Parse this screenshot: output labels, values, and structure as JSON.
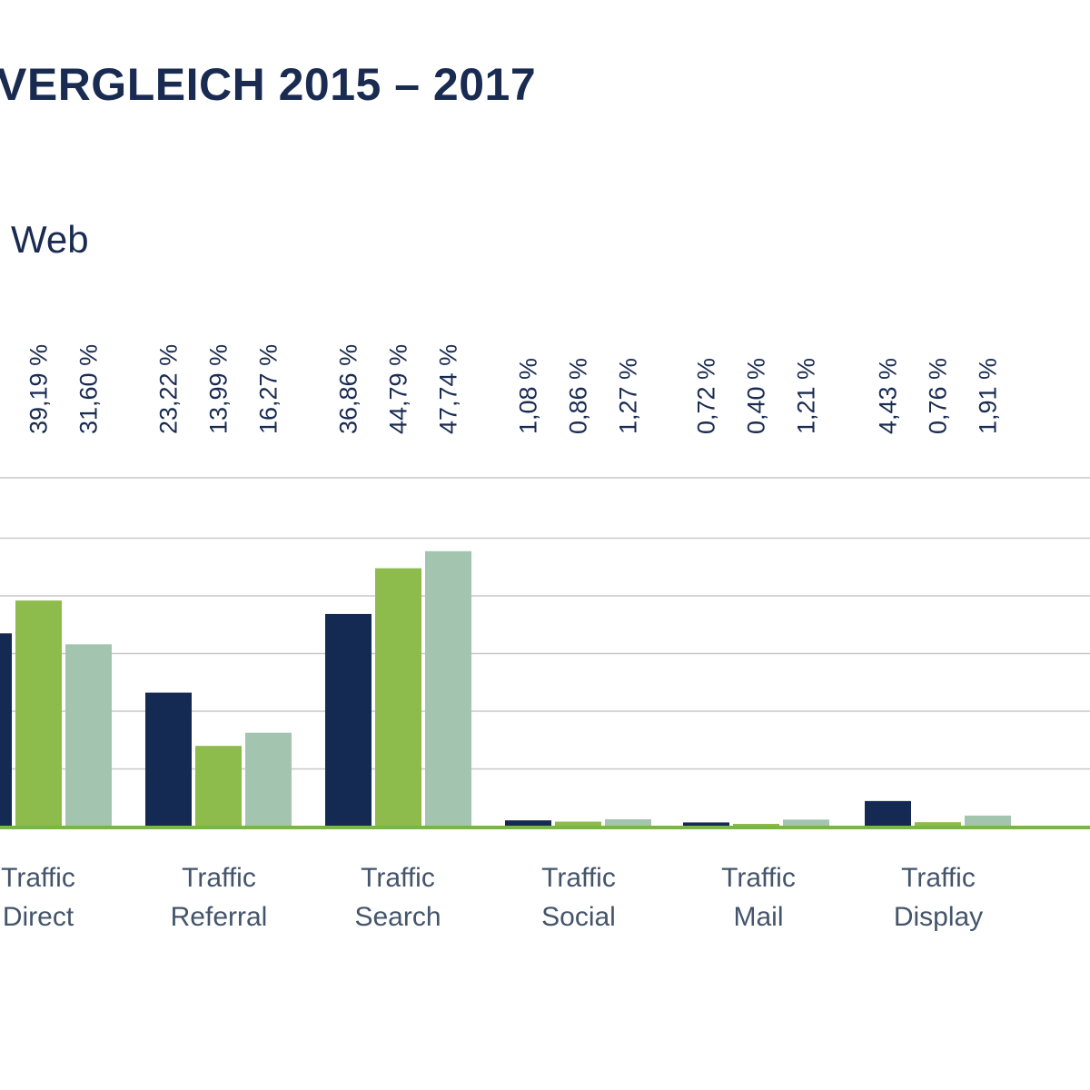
{
  "header": {
    "title": "VERGLEICH 2015 – 2017",
    "subtitle": "Web"
  },
  "colors": {
    "series": [
      "#142a52",
      "#8dbb4c",
      "#a3c4af"
    ],
    "grid": "#c9c9c9",
    "baseline": "#7ab547"
  },
  "chart_data": {
    "type": "bar",
    "categories": [
      [
        "Traffic",
        "Direct"
      ],
      [
        "Traffic",
        "Referral"
      ],
      [
        "Traffic",
        "Search"
      ],
      [
        "Traffic",
        "Social"
      ],
      [
        "Traffic",
        "Mail"
      ],
      [
        "Traffic",
        "Display"
      ]
    ],
    "series": [
      {
        "values": [
          33.5,
          23.22,
          36.86,
          1.08,
          0.72,
          4.43
        ],
        "labels": [
          null,
          "23,22 %",
          "36,86 %",
          "1,08 %",
          "0,72 %",
          "4,43 %"
        ]
      },
      {
        "values": [
          39.19,
          13.99,
          44.79,
          0.86,
          0.4,
          0.76
        ],
        "labels": [
          "39,19 %",
          "13,99 %",
          "44,79 %",
          "0,86 %",
          "0,40 %",
          "0,76 %"
        ]
      },
      {
        "values": [
          31.6,
          16.27,
          47.74,
          1.27,
          1.21,
          1.91
        ],
        "labels": [
          "31,60 %",
          "16,27 %",
          "47,74 %",
          "1,27 %",
          "1,21 %",
          "1,91 %"
        ]
      }
    ],
    "ylim": [
      0,
      60
    ],
    "grid": true,
    "legend": false
  }
}
